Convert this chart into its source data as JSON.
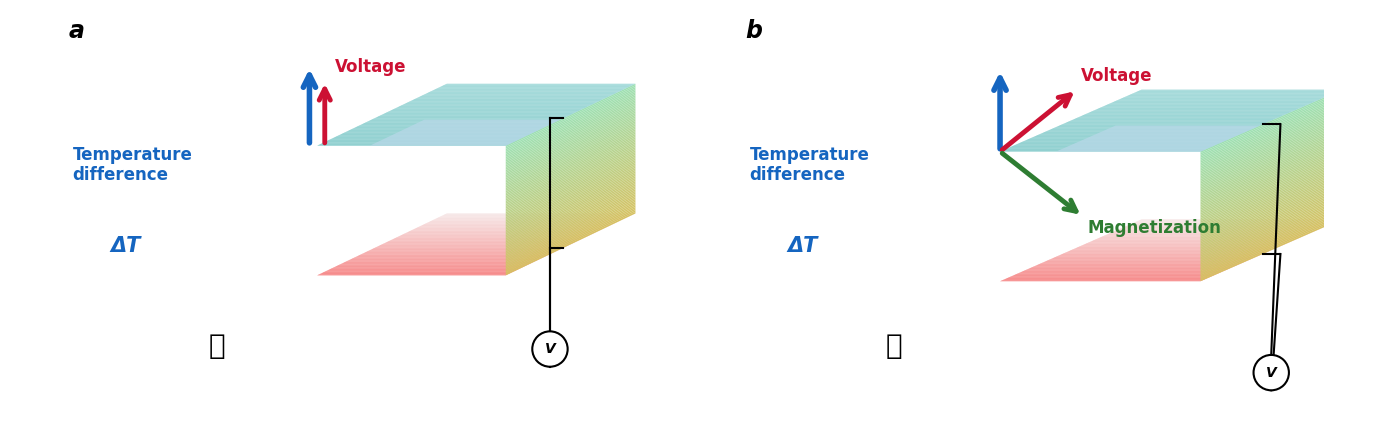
{
  "panel_a_label": "a",
  "panel_b_label": "b",
  "temp_diff_label": "Temperature\ndifference",
  "delta_T_label": "ΔT",
  "voltage_label": "Voltage",
  "magnetization_label": "Magnetization",
  "voltmeter_label": "V",
  "text_color_blue": "#1565C0",
  "text_color_red": "#CC1133",
  "text_color_green": "#2E7D32",
  "text_color_black": "#111111",
  "arrow_blue": "#1565C0",
  "arrow_red": "#CC1133",
  "arrow_green": "#2E7D32"
}
